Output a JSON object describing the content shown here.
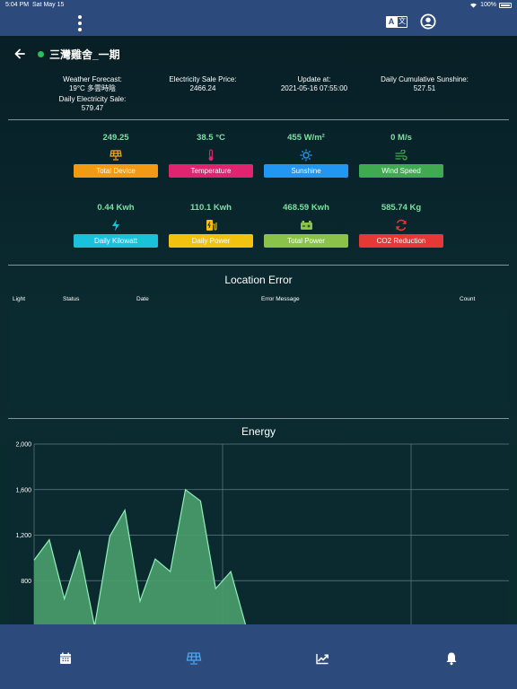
{
  "status_bar": {
    "time": "5:04 PM",
    "date": "Sat May 15",
    "battery": "100%"
  },
  "site": {
    "title": "三灣雞舍_一期"
  },
  "info": {
    "weather_label": "Weather Forecast:",
    "weather_value": "19°C 多雲時陰",
    "daily_sale_label": "Daily Electricity Sale:",
    "daily_sale_value": "579.47",
    "price_label": "Electricity Sale Price:",
    "price_value": "2466.24",
    "update_label": "Update at:",
    "update_value": "2021-05-16 07:55:00",
    "sunshine_label": "Daily Cumulative Sunshine:",
    "sunshine_value": "527.51"
  },
  "metrics": [
    {
      "value": "249.25",
      "label": "Total Device",
      "color": "#f39a14",
      "icon": "solar-panel-icon",
      "icon_color": "#f5a623"
    },
    {
      "value": "38.5 °C",
      "label": "Temperature",
      "color": "#e0246f",
      "icon": "thermometer-icon",
      "icon_color": "#e0246f"
    },
    {
      "value": "455 W/m²",
      "label": "Sunshine",
      "color": "#2196f3",
      "icon": "sun-icon",
      "icon_color": "#2196f3"
    },
    {
      "value": "0 M/s",
      "label": "Wind Speed",
      "color": "#3faa4f",
      "icon": "wind-icon",
      "icon_color": "#3faa4f"
    },
    {
      "value": "0.44 Kwh",
      "label": "Daily Kilowatt",
      "color": "#19c1dc",
      "icon": "lightning-icon",
      "icon_color": "#19c1dc"
    },
    {
      "value": "110.1 Kwh",
      "label": "Daily Power",
      "color": "#f3c20f",
      "icon": "ev-charger-icon",
      "icon_color": "#f3c20f"
    },
    {
      "value": "468.59 Kwh",
      "label": "Total Power",
      "color": "#8bc34a",
      "icon": "battery-icon",
      "icon_color": "#8bc34a"
    },
    {
      "value": "585.74 Kg",
      "label": "CO2 Reduction",
      "color": "#e53935",
      "icon": "refresh-icon",
      "icon_color": "#e53935"
    }
  ],
  "location_error": {
    "title": "Location Error",
    "columns": [
      "Light",
      "Status",
      "Date",
      "Error Message",
      "Count"
    ]
  },
  "energy": {
    "title": "Energy"
  },
  "chart_data": {
    "type": "area",
    "title": "Energy",
    "xlabel": "",
    "ylabel": "",
    "y_ticks": [
      "2,000",
      "1,600",
      "1,200",
      "800"
    ],
    "ylim": [
      400,
      2000
    ],
    "grid": true,
    "series": [
      {
        "values": [
          980,
          1160,
          640,
          1060,
          400,
          1190,
          1420,
          620,
          990,
          880,
          1600,
          1500,
          730,
          880,
          400
        ]
      }
    ],
    "colors": {
      "fill": "#4a9e6e",
      "stroke": "#8ff0b8"
    }
  },
  "tabbar": {
    "tabs": [
      "calendar-icon",
      "solar-panel-icon",
      "trending-up-icon",
      "bell-icon"
    ],
    "active_color": "#4aa8f0"
  }
}
